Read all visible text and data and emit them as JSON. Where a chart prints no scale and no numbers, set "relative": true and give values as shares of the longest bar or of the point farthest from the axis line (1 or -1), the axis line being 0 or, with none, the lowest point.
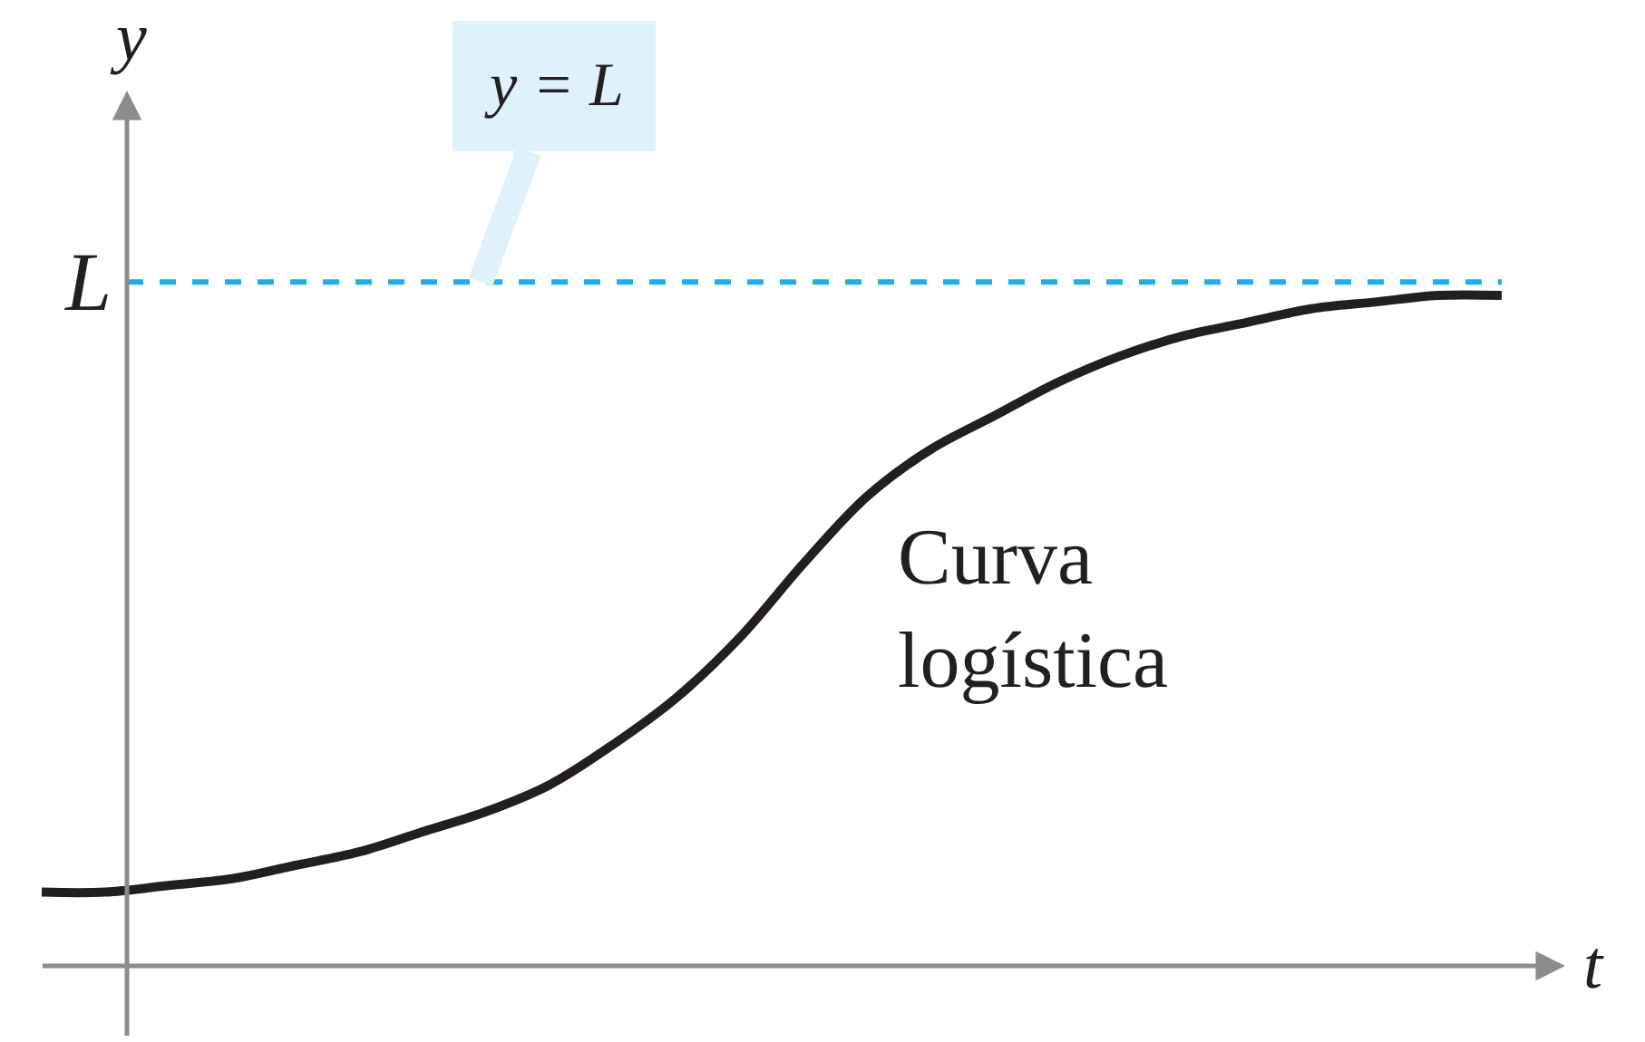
{
  "chart_data": {
    "type": "line",
    "relative": true,
    "xlabel": "t",
    "ylabel": "y",
    "categories": [
      null,
      null,
      null,
      null,
      null,
      null,
      null,
      null,
      null,
      null,
      null,
      null,
      null,
      null,
      null,
      null,
      null,
      null,
      null,
      null,
      null,
      null,
      null,
      null
    ],
    "series": [
      {
        "name": "Curva logística",
        "color": "#231f20",
        "values": [
          0.11,
          0.11,
          0.12,
          0.13,
          0.15,
          0.17,
          0.2,
          0.23,
          0.27,
          0.33,
          0.4,
          0.49,
          0.6,
          0.7,
          0.77,
          0.82,
          0.87,
          0.91,
          0.94,
          0.96,
          0.98,
          0.99,
          1.0,
          1.0
        ]
      }
    ],
    "ref_lines": [
      {
        "axis": "y",
        "value": 1.02,
        "label": "L",
        "color": "#1ab0ec",
        "line_style": "dashed"
      }
    ],
    "annotations": [
      {
        "text": "y = L",
        "y": 1.02
      }
    ]
  }
}
